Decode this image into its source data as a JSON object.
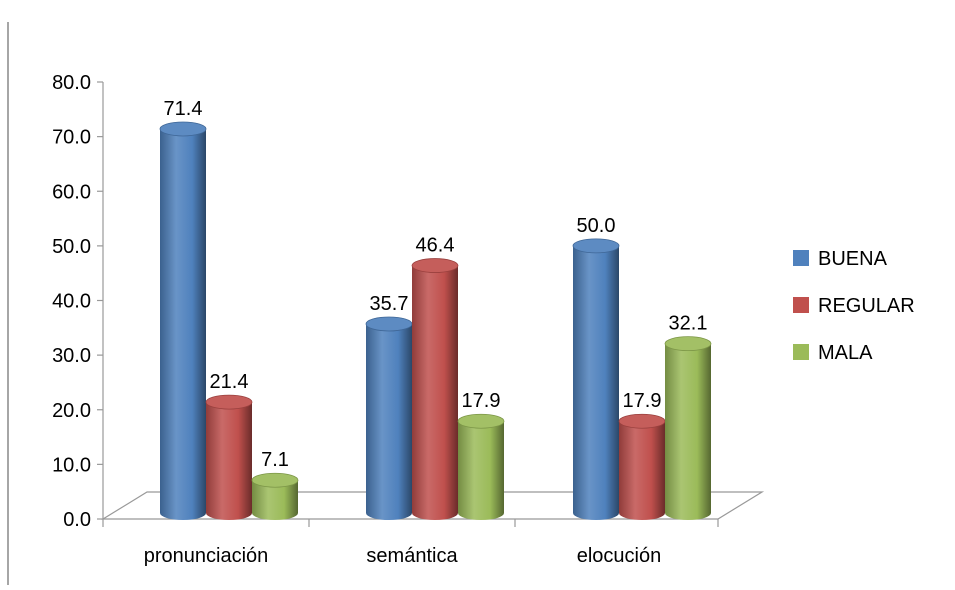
{
  "chart_data": {
    "type": "bar",
    "categories": [
      "pronunciación",
      "semántica",
      "elocución"
    ],
    "series": [
      {
        "name": "BUENA",
        "values": [
          71.4,
          35.7,
          50.0
        ],
        "color": "#4F81BD"
      },
      {
        "name": "REGULAR",
        "values": [
          21.4,
          46.4,
          17.9
        ],
        "color": "#C0504D"
      },
      {
        "name": "MALA",
        "values": [
          7.1,
          17.9,
          32.1
        ],
        "color": "#9BBB59"
      }
    ],
    "ylim": [
      0,
      80
    ],
    "yticks": [
      "0.0",
      "10.0",
      "20.0",
      "30.0",
      "40.0",
      "50.0",
      "60.0",
      "70.0",
      "80.0"
    ],
    "data_labels": [
      [
        "71.4",
        "35.7",
        "50.0"
      ],
      [
        "21.4",
        "46.4",
        "17.9"
      ],
      [
        "7.1",
        "17.9",
        "32.1"
      ]
    ],
    "grid": false,
    "legend": "right",
    "style": "3d-cylinder"
  }
}
